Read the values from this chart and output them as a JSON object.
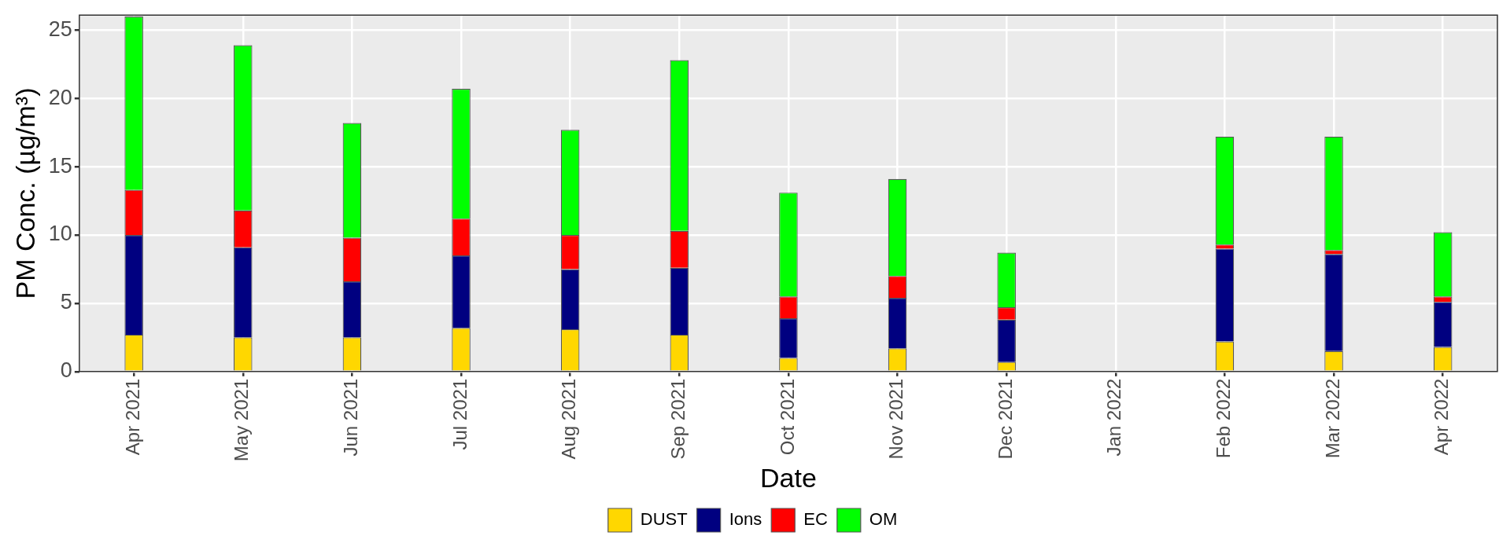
{
  "chart_data": {
    "type": "bar",
    "stacked": true,
    "xlabel": "Date",
    "ylabel": "PM Conc. (µg/m³)",
    "categories": [
      "Apr 2021",
      "May 2021",
      "Jun 2021",
      "Jul 2021",
      "Aug 2021",
      "Sep 2021",
      "Oct 2021",
      "Nov 2021",
      "Dec 2021",
      "Jan 2022",
      "Feb 2022",
      "Mar 2022",
      "Apr 2022"
    ],
    "series": [
      {
        "name": "DUST",
        "color": "#ffd700",
        "values": [
          2.7,
          2.5,
          2.5,
          3.2,
          3.1,
          2.7,
          1.0,
          1.7,
          0.7,
          null,
          2.2,
          1.5,
          1.8
        ]
      },
      {
        "name": "Ions",
        "color": "#000080",
        "values": [
          7.3,
          6.6,
          4.1,
          5.3,
          4.4,
          4.9,
          2.9,
          3.7,
          3.1,
          null,
          6.8,
          7.1,
          3.3
        ]
      },
      {
        "name": "EC",
        "color": "#ff0000",
        "values": [
          3.3,
          2.7,
          3.2,
          2.7,
          2.5,
          2.7,
          1.6,
          1.6,
          0.9,
          null,
          0.3,
          0.3,
          0.4
        ]
      },
      {
        "name": "OM",
        "color": "#00ff00",
        "values": [
          12.7,
          12.1,
          8.4,
          9.5,
          7.7,
          12.5,
          7.6,
          7.1,
          4.0,
          null,
          7.9,
          8.3,
          4.7
        ]
      }
    ],
    "ylim": [
      0,
      26.1
    ],
    "yticks": [
      0,
      5,
      10,
      15,
      20,
      25
    ],
    "grid": true,
    "legend": "bottom"
  }
}
